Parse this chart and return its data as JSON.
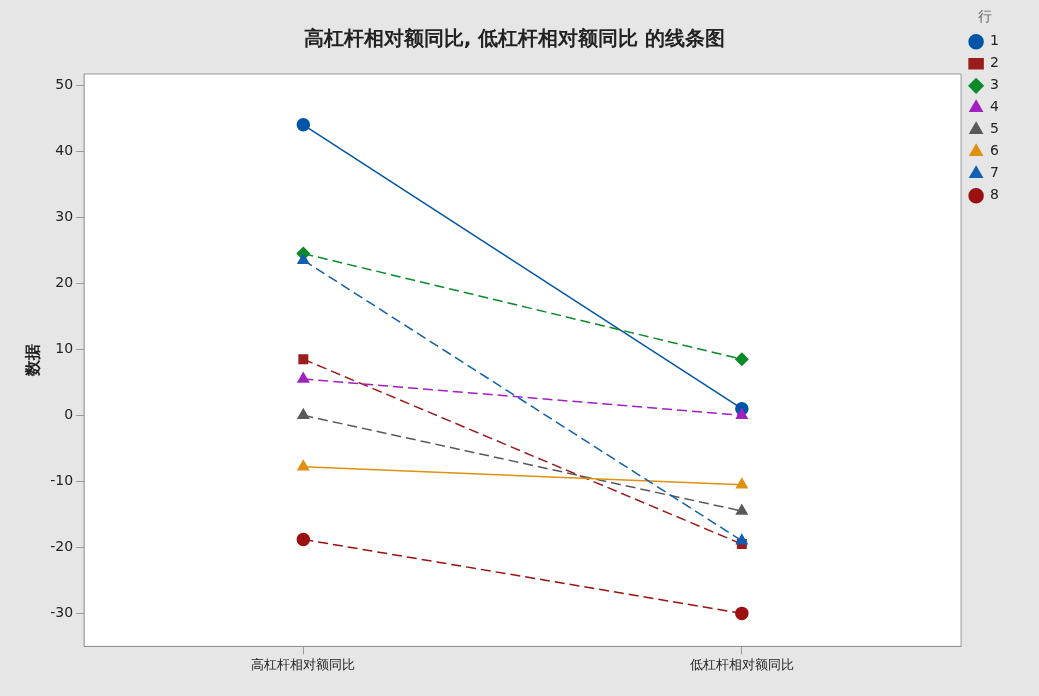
{
  "chart_data": {
    "type": "line",
    "title": "高杠杆相对额同比, 低杠杆相对额同比 的线条图",
    "ylabel": "数据",
    "legend_title": "行",
    "categories": [
      "高杠杆相对额同比",
      "低杠杆相对额同比"
    ],
    "ylim": [
      -35,
      51.7
    ],
    "yticks": [
      -30,
      -20,
      -10,
      0,
      10,
      20,
      30,
      40,
      50
    ],
    "grid": false,
    "legend": "top right",
    "series": [
      {
        "name": "1",
        "color": "#0054a6",
        "values": [
          44,
          1
        ],
        "marker": "circle",
        "line_style": "solid"
      },
      {
        "name": "2",
        "color": "#9b1c1c",
        "values": [
          8.5,
          -19.5
        ],
        "marker": "square",
        "line_style": "dashed"
      },
      {
        "name": "3",
        "color": "#0b8a2a",
        "values": [
          24.5,
          8.5
        ],
        "marker": "diamond",
        "line_style": "dashed"
      },
      {
        "name": "4",
        "color": "#a020c0",
        "values": [
          5.5,
          0
        ],
        "marker": "triangle",
        "line_style": "dashed"
      },
      {
        "name": "5",
        "color": "#595959",
        "values": [
          0,
          -14.5
        ],
        "marker": "triangle",
        "line_style": "dashed"
      },
      {
        "name": "6",
        "color": "#e09010",
        "values": [
          -7.8,
          -10.5
        ],
        "marker": "triangle",
        "line_style": "solid"
      },
      {
        "name": "7",
        "color": "#1060b0",
        "values": [
          23.5,
          -19
        ],
        "marker": "triangle",
        "line_style": "dashed"
      },
      {
        "name": "8",
        "color": "#9b1010",
        "values": [
          -18.8,
          -30
        ],
        "marker": "circle",
        "line_style": "dashed"
      }
    ]
  }
}
